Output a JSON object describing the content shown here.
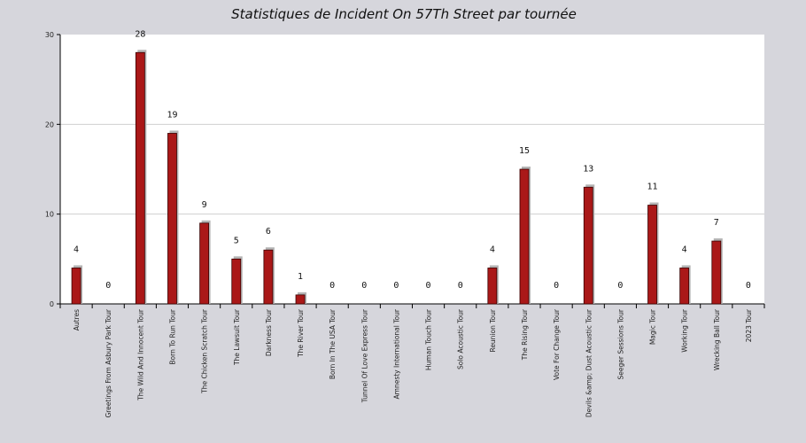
{
  "chart_data": {
    "type": "bar",
    "title": "Statistiques de Incident On 57Th Street par tournée",
    "xlabel": "",
    "ylabel": "",
    "ylim": [
      0,
      30
    ],
    "yticks": [
      0,
      10,
      20,
      30
    ],
    "grid": true,
    "categories": [
      "Autres",
      "Greetings From Asbury Park Tour",
      "The Wild And Innocent Tour",
      "Born To Run Tour",
      "The Chicken Scratch Tour",
      "The Lawsuit Tour",
      "Darkness Tour",
      "The River Tour",
      "Born In The USA Tour",
      "Tunnel Of Love Express Tour",
      "Amnesty International Tour",
      "Human Touch Tour",
      "Solo Acoustic Tour",
      "Reunion Tour",
      "The Rising Tour",
      "Vote For Change Tour",
      "Devils &amp; Dust Acoustic Tour",
      "Seeger Sessions Tour",
      "Magic Tour",
      "Working Tour",
      "Wrecking Ball Tour",
      "2023 Tour"
    ],
    "values": [
      4,
      0,
      28,
      19,
      9,
      5,
      6,
      1,
      0,
      0,
      0,
      0,
      0,
      4,
      15,
      0,
      13,
      0,
      11,
      4,
      7,
      0
    ],
    "colors": {
      "bar": "#aa1818",
      "bar_shadow": "#b4b4b4",
      "plot_bg": "#ffffff",
      "page_bg": "#d6d6dc",
      "grid": "#d0d0d0"
    }
  }
}
